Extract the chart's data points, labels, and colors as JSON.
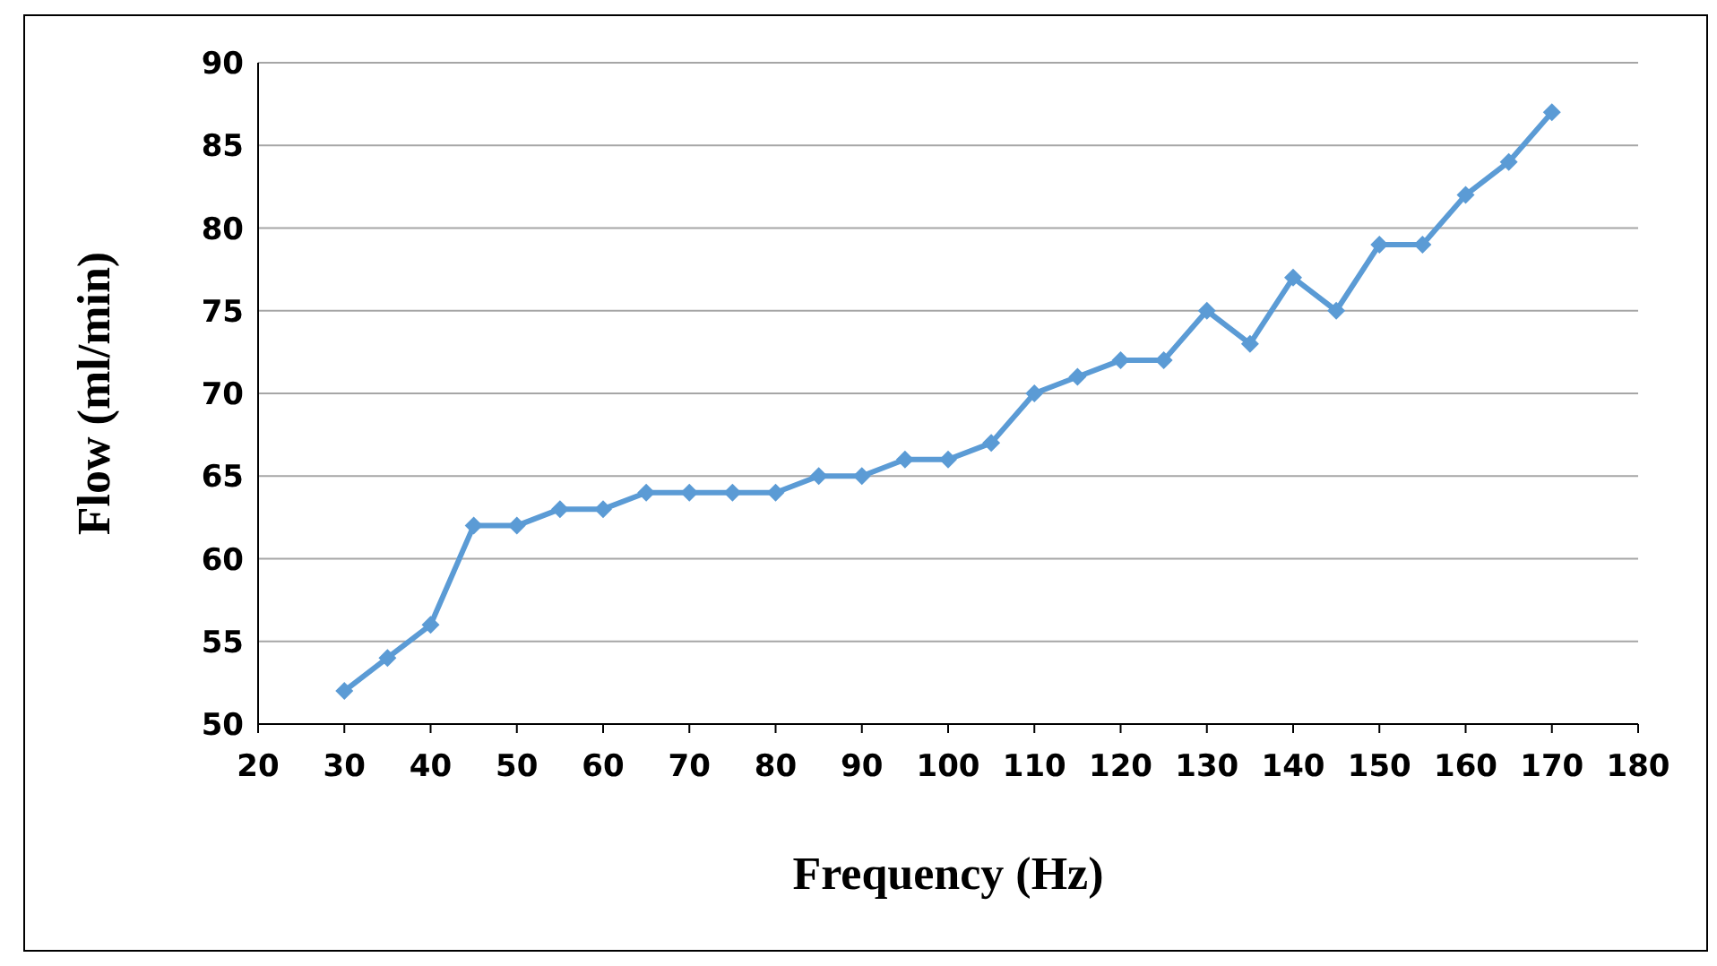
{
  "chart_data": {
    "type": "line",
    "xlabel": "Frequency (Hz)",
    "ylabel": "Flow (ml/min)",
    "x": [
      30,
      35,
      40,
      45,
      50,
      55,
      60,
      65,
      70,
      75,
      80,
      85,
      90,
      95,
      100,
      105,
      110,
      115,
      120,
      125,
      130,
      135,
      140,
      145,
      150,
      155,
      160,
      165,
      170
    ],
    "series": [
      {
        "color": "#5b9bd5",
        "values": [
          52,
          54,
          56,
          62,
          62,
          63,
          63,
          64,
          64,
          64,
          64,
          65,
          65,
          66,
          66,
          67,
          70,
          71,
          72,
          72,
          75,
          73,
          77,
          75,
          79,
          79,
          82,
          84,
          87
        ]
      }
    ],
    "xlim": [
      20,
      180
    ],
    "xticks": [
      20,
      30,
      40,
      50,
      60,
      70,
      80,
      90,
      100,
      110,
      120,
      130,
      140,
      150,
      160,
      170,
      180
    ],
    "ylim": [
      50,
      90
    ],
    "yticks": [
      50,
      55,
      60,
      65,
      70,
      75,
      80,
      85,
      90
    ],
    "grid": "y",
    "marker": "diamond",
    "line_style": "solid",
    "legend": false
  }
}
